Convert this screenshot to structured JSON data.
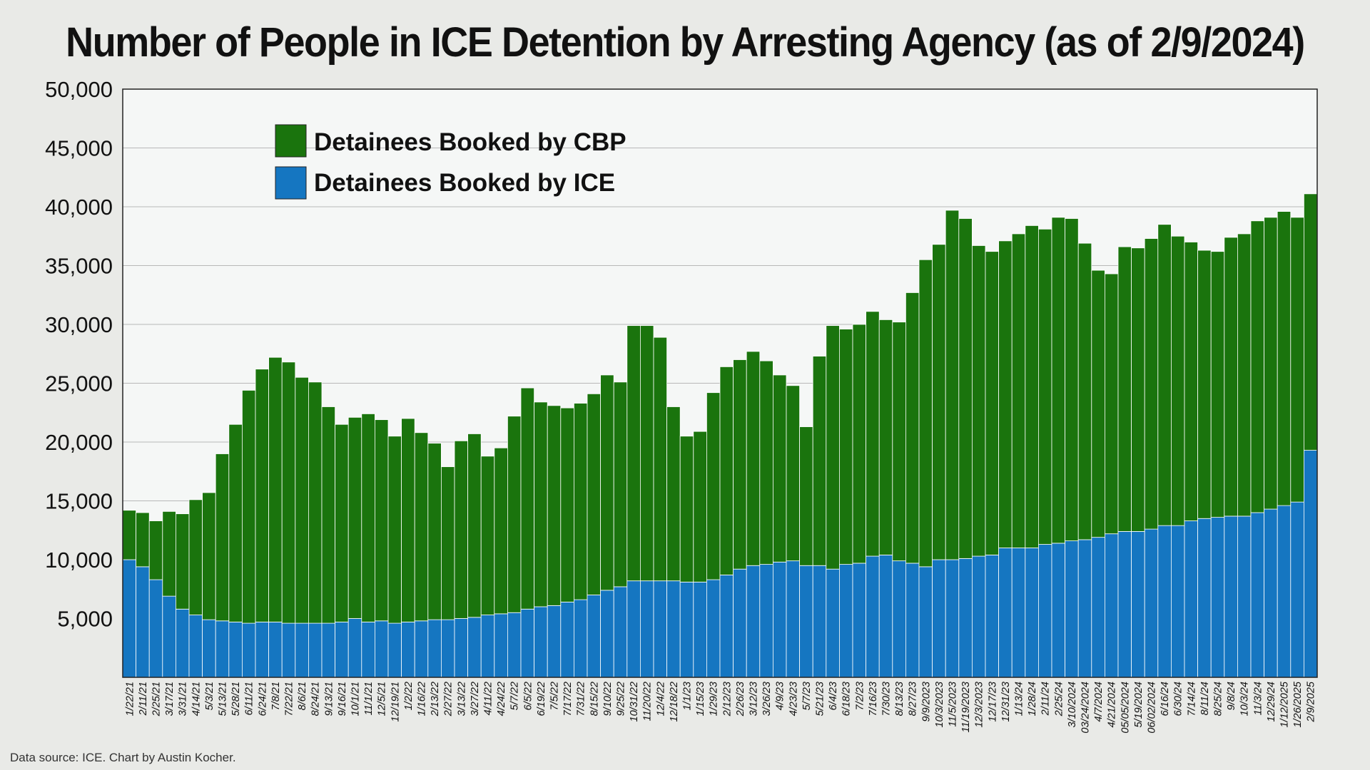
{
  "title": "Number of People in ICE Detention by Arresting Agency (as of 2/9/2024)",
  "source": "Data source: ICE. Chart by Austin Kocher.",
  "colors": {
    "cbp": "#1a740d",
    "ice": "#1576c1",
    "plot_bg": "#f5f7f6",
    "grid": "#b8b8b8"
  },
  "chart_data": {
    "type": "bar",
    "stacked": true,
    "title": "Number of People in ICE Detention by Arresting Agency (as of 2/9/2024)",
    "xlabel": "",
    "ylabel": "",
    "ylim": [
      0,
      50000
    ],
    "yticks": [
      5000,
      10000,
      15000,
      20000,
      25000,
      30000,
      35000,
      40000,
      45000,
      50000
    ],
    "ytick_labels": [
      "5,000",
      "10,000",
      "15,000",
      "20,000",
      "25,000",
      "30,000",
      "35,000",
      "40,000",
      "45,000",
      "50,000"
    ],
    "grid": true,
    "legend_position": "top-left",
    "categories": [
      "1/22/21",
      "2/11/21",
      "2/25/21",
      "3/17/21",
      "3/31/21",
      "4/14/21",
      "5/3/21",
      "5/13/21",
      "5/28/21",
      "6/11/21",
      "6/24/21",
      "7/8/21",
      "7/22/21",
      "8/6/21",
      "8/24/21",
      "9/13/21",
      "9/16/21",
      "10/1/21",
      "11/1/21",
      "12/5/21",
      "12/19/21",
      "1/2/22",
      "1/16/22",
      "2/13/22",
      "2/27/22",
      "3/13/22",
      "3/27/22",
      "4/11/22",
      "4/24/22",
      "5/7/22",
      "6/5/22",
      "6/19/22",
      "7/5/22",
      "7/17/22",
      "7/31/22",
      "8/15/22",
      "9/10/22",
      "9/25/22",
      "10/31/22",
      "11/20/22",
      "12/4/22",
      "12/18/22",
      "1/1/23",
      "1/15/23",
      "1/29/23",
      "2/12/23",
      "2/26/23",
      "3/12/23",
      "3/26/23",
      "4/9/23",
      "4/23/23",
      "5/7/23",
      "5/21/23",
      "6/4/23",
      "6/18/23",
      "7/2/23",
      "7/16/23",
      "7/30/23",
      "8/13/23",
      "8/27/23",
      "9/9/2023",
      "10/3/2023",
      "11/5/2023",
      "11/19/2023",
      "12/3/2023",
      "12/17/23",
      "12/31/23",
      "1/13/24",
      "1/28/24",
      "2/11/24",
      "2/25/24",
      "3/10/2024",
      "03/24/2024",
      "4/7/2024",
      "4/21/2024",
      "05/05/2024",
      "5/19/2024",
      "06/02/2024",
      "6/16/24",
      "6/30/24",
      "7/14/24",
      "8/11/24",
      "8/25/24",
      "9/8/24",
      "10/3/24",
      "11/3/24",
      "12/29/24",
      "1/12/2025",
      "1/26/2025",
      "2/9/2025"
    ],
    "series": [
      {
        "name": "Detainees Booked by ICE",
        "values": [
          10000,
          9400,
          8300,
          6900,
          5800,
          5300,
          4900,
          4800,
          4700,
          4600,
          4700,
          4700,
          4600,
          4600,
          4600,
          4600,
          4700,
          5000,
          4700,
          4800,
          4600,
          4700,
          4800,
          4900,
          4900,
          5000,
          5100,
          5300,
          5400,
          5500,
          5800,
          6000,
          6100,
          6400,
          6600,
          7000,
          7400,
          7700,
          8200,
          8200,
          8200,
          8200,
          8100,
          8100,
          8300,
          8700,
          9200,
          9500,
          9600,
          9800,
          9900,
          9500,
          9500,
          9200,
          9600,
          9700,
          10300,
          10400,
          9900,
          9700,
          9400,
          10000,
          10000,
          10100,
          10300,
          10400,
          11000,
          11000,
          11000,
          11300,
          11400,
          11600,
          11700,
          11900,
          12200,
          12400,
          12400,
          12600,
          12900,
          12900,
          13300,
          13500,
          13600,
          13700,
          13700,
          14000,
          14300,
          14600,
          14900,
          19300
        ]
      },
      {
        "name": "Detainees Booked by CBP",
        "values": [
          4200,
          4600,
          5000,
          7200,
          8100,
          9800,
          10800,
          14200,
          16800,
          19800,
          21500,
          22500,
          22200,
          20900,
          20500,
          18400,
          16800,
          17100,
          17700,
          17100,
          15900,
          17300,
          16000,
          15000,
          13000,
          15100,
          15600,
          13500,
          14100,
          16700,
          18800,
          17400,
          17000,
          16500,
          16700,
          17100,
          18300,
          17400,
          21700,
          21700,
          20700,
          14800,
          12400,
          12800,
          15900,
          17700,
          17800,
          18200,
          17300,
          15900,
          14900,
          11800,
          17800,
          20700,
          20000,
          20300,
          20800,
          20000,
          20300,
          23000,
          26100,
          26800,
          29700,
          28900,
          26400,
          25800,
          26100,
          26700,
          27400,
          26800,
          27700,
          27400,
          25200,
          22700,
          22100,
          24200,
          24100,
          24700,
          25600,
          24600,
          23700,
          22800,
          22600,
          23700,
          24000,
          24800,
          24800,
          25000,
          24200,
          21800
        ]
      }
    ]
  }
}
